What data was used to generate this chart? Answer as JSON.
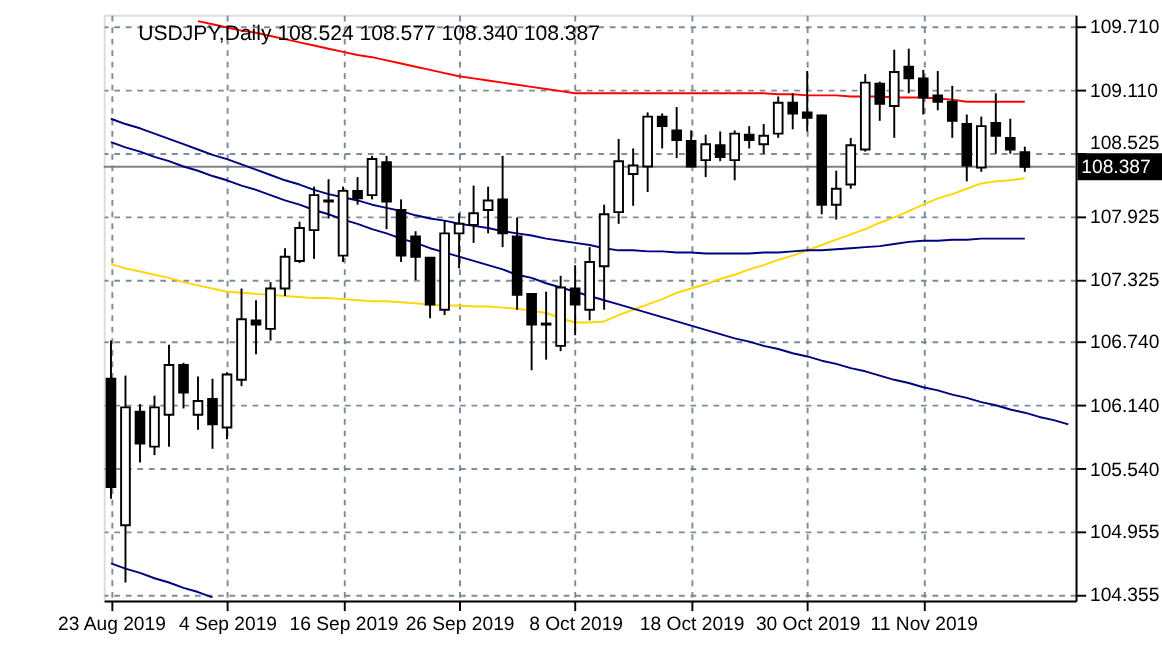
{
  "chart_data": {
    "type": "candlestick",
    "title": "USDJPY,Daily  108.524 108.577 108.340 108.387",
    "categories": [
      "23 Aug 2019",
      null,
      null,
      null,
      null,
      null,
      null,
      null,
      "4 Sep 2019",
      null,
      null,
      null,
      null,
      null,
      null,
      null,
      "16 Sep 2019",
      null,
      null,
      null,
      null,
      null,
      null,
      null,
      "26 Sep 2019",
      null,
      null,
      null,
      null,
      null,
      null,
      null,
      "8 Oct 2019",
      null,
      null,
      null,
      null,
      null,
      null,
      null,
      "18 Oct 2019",
      null,
      null,
      null,
      null,
      null,
      null,
      null,
      "30 Oct 2019",
      null,
      null,
      null,
      null,
      null,
      null,
      null,
      "11 Nov 2019",
      null,
      null,
      null,
      null,
      null,
      null,
      null,
      null,
      null,
      null
    ],
    "ohlc": [
      [
        106.39,
        106.75,
        105.26,
        105.37
      ],
      [
        105.01,
        106.42,
        104.47,
        106.12
      ],
      [
        106.08,
        106.15,
        105.6,
        105.78
      ],
      [
        105.75,
        106.23,
        105.67,
        106.12
      ],
      [
        106.05,
        106.71,
        105.75,
        106.52
      ],
      [
        106.52,
        106.54,
        106.11,
        106.26
      ],
      [
        106.05,
        106.41,
        105.91,
        106.18
      ],
      [
        106.2,
        106.39,
        105.73,
        105.96
      ],
      [
        105.93,
        106.45,
        105.82,
        106.43
      ],
      [
        106.38,
        107.24,
        106.32,
        106.95
      ],
      [
        106.94,
        107.13,
        106.62,
        106.9
      ],
      [
        106.86,
        107.3,
        106.75,
        107.24
      ],
      [
        107.24,
        107.62,
        107.17,
        107.54
      ],
      [
        107.5,
        107.87,
        107.48,
        107.81
      ],
      [
        107.79,
        108.2,
        107.52,
        108.12
      ],
      [
        108.06,
        108.27,
        107.9,
        108.07
      ],
      [
        107.55,
        108.2,
        107.49,
        108.16
      ],
      [
        108.16,
        108.29,
        108.03,
        108.09
      ],
      [
        108.12,
        108.49,
        108.08,
        108.46
      ],
      [
        108.43,
        108.49,
        107.8,
        108.06
      ],
      [
        107.98,
        108.08,
        107.49,
        107.55
      ],
      [
        107.73,
        107.78,
        107.32,
        107.54
      ],
      [
        107.53,
        107.53,
        106.96,
        107.09
      ],
      [
        107.04,
        107.88,
        106.99,
        107.76
      ],
      [
        107.76,
        107.95,
        107.43,
        107.85
      ],
      [
        107.84,
        108.21,
        107.67,
        107.95
      ],
      [
        107.98,
        108.2,
        107.76,
        108.07
      ],
      [
        108.08,
        108.49,
        107.63,
        107.76
      ],
      [
        107.73,
        107.91,
        107.04,
        107.18
      ],
      [
        107.19,
        107.19,
        106.47,
        106.9
      ],
      [
        106.9,
        107.21,
        106.57,
        106.91
      ],
      [
        106.7,
        107.36,
        106.65,
        107.25
      ],
      [
        107.24,
        107.46,
        106.8,
        107.09
      ],
      [
        107.04,
        107.63,
        106.94,
        107.49
      ],
      [
        107.45,
        108.03,
        107.04,
        107.94
      ],
      [
        107.96,
        108.65,
        107.85,
        108.44
      ],
      [
        108.32,
        108.56,
        108.02,
        108.4
      ],
      [
        108.39,
        108.9,
        108.15,
        108.86
      ],
      [
        108.86,
        108.89,
        108.56,
        108.77
      ],
      [
        108.73,
        108.95,
        108.47,
        108.64
      ],
      [
        108.63,
        108.73,
        108.38,
        108.39
      ],
      [
        108.45,
        108.69,
        108.29,
        108.6
      ],
      [
        108.59,
        108.72,
        108.44,
        108.48
      ],
      [
        108.45,
        108.73,
        108.26,
        108.7
      ],
      [
        108.69,
        108.77,
        108.56,
        108.64
      ],
      [
        108.6,
        108.79,
        108.51,
        108.68
      ],
      [
        108.7,
        109.05,
        108.66,
        108.99
      ],
      [
        108.99,
        109.08,
        108.74,
        108.89
      ],
      [
        108.9,
        109.29,
        108.72,
        108.85
      ],
      [
        108.87,
        108.88,
        107.94,
        108.03
      ],
      [
        108.03,
        108.35,
        107.89,
        108.18
      ],
      [
        108.22,
        108.66,
        108.18,
        108.59
      ],
      [
        108.55,
        109.26,
        108.53,
        109.18
      ],
      [
        109.17,
        109.19,
        108.82,
        108.98
      ],
      [
        108.96,
        109.49,
        108.66,
        109.28
      ],
      [
        109.33,
        109.5,
        109.08,
        109.22
      ],
      [
        109.22,
        109.3,
        108.88,
        109.04
      ],
      [
        109.06,
        109.29,
        108.92,
        109.0
      ],
      [
        109.0,
        109.15,
        108.66,
        108.82
      ],
      [
        108.79,
        108.88,
        108.25,
        108.4
      ],
      [
        108.38,
        108.86,
        108.34,
        108.77
      ],
      [
        108.8,
        109.08,
        108.51,
        108.68
      ],
      [
        108.66,
        108.84,
        108.51,
        108.55
      ],
      [
        108.524,
        108.577,
        108.34,
        108.387
      ],
      null,
      null,
      null
    ],
    "series": [
      {
        "type": "line",
        "color": "#ff0000",
        "values": [
          null,
          null,
          null,
          null,
          null,
          null,
          109.76,
          109.73,
          109.7,
          109.67,
          109.65,
          109.62,
          109.59,
          109.56,
          109.53,
          109.5,
          109.47,
          109.44,
          109.42,
          109.39,
          109.36,
          109.33,
          109.3,
          109.27,
          109.24,
          109.22,
          109.2,
          109.18,
          109.16,
          109.14,
          109.12,
          109.1,
          109.08,
          109.08,
          109.08,
          109.08,
          109.08,
          109.08,
          109.08,
          109.08,
          109.08,
          109.08,
          109.08,
          109.08,
          109.08,
          109.08,
          109.07,
          109.07,
          109.06,
          109.06,
          109.06,
          109.05,
          109.05,
          109.05,
          109.04,
          109.04,
          109.04,
          109.03,
          109.02,
          109.0,
          109.0,
          109.0,
          109.0,
          109.0,
          null,
          null,
          null
        ]
      },
      {
        "type": "line",
        "color": "#ffd700",
        "values": [
          107.47,
          107.43,
          107.4,
          107.37,
          107.34,
          107.3,
          107.27,
          107.24,
          107.21,
          107.2,
          107.19,
          107.18,
          107.17,
          107.16,
          107.15,
          107.15,
          107.14,
          107.13,
          107.12,
          107.12,
          107.11,
          107.1,
          107.09,
          107.08,
          107.08,
          107.07,
          107.07,
          107.06,
          107.05,
          107.03,
          107.01,
          106.96,
          106.92,
          106.92,
          106.93,
          106.99,
          107.04,
          107.09,
          107.14,
          107.2,
          107.24,
          107.28,
          107.33,
          107.37,
          107.42,
          107.46,
          107.51,
          107.55,
          107.6,
          107.65,
          107.7,
          107.75,
          107.8,
          107.86,
          107.91,
          107.97,
          108.03,
          108.09,
          108.13,
          108.18,
          108.23,
          108.25,
          108.26,
          108.28,
          null,
          null,
          null
        ]
      },
      {
        "type": "line",
        "color": "#000080",
        "values": [
          108.84,
          108.79,
          108.75,
          108.7,
          108.65,
          108.6,
          108.55,
          108.5,
          108.46,
          108.41,
          108.36,
          108.31,
          108.26,
          108.22,
          108.17,
          108.13,
          108.1,
          108.07,
          108.03,
          108.0,
          107.97,
          107.93,
          107.9,
          107.88,
          107.85,
          107.83,
          107.81,
          107.78,
          107.76,
          107.74,
          107.71,
          107.69,
          107.67,
          107.65,
          107.62,
          107.6,
          107.6,
          107.59,
          107.59,
          107.58,
          107.58,
          107.57,
          107.57,
          107.57,
          107.57,
          107.58,
          107.58,
          107.59,
          107.6,
          107.6,
          107.61,
          107.62,
          107.63,
          107.64,
          107.66,
          107.68,
          107.69,
          107.69,
          107.7,
          107.7,
          107.71,
          107.71,
          107.71,
          107.71,
          null,
          null,
          null
        ]
      },
      {
        "type": "line",
        "color": "#000080",
        "values": [
          108.62,
          108.57,
          108.53,
          108.48,
          108.44,
          108.39,
          108.35,
          108.3,
          108.26,
          108.21,
          108.17,
          108.12,
          108.07,
          108.03,
          107.98,
          107.94,
          107.89,
          107.85,
          107.8,
          107.76,
          107.71,
          107.67,
          107.62,
          107.58,
          107.54,
          107.5,
          107.46,
          107.42,
          107.37,
          107.34,
          107.29,
          107.25,
          107.21,
          107.17,
          107.13,
          107.09,
          107.05,
          107.01,
          106.97,
          106.93,
          106.89,
          106.85,
          106.81,
          106.77,
          106.74,
          106.7,
          106.67,
          106.63,
          106.6,
          106.56,
          106.53,
          106.49,
          106.46,
          106.42,
          106.38,
          106.35,
          106.31,
          106.28,
          106.24,
          106.21,
          106.17,
          106.14,
          106.1,
          106.07,
          106.03,
          106.0,
          105.96
        ]
      },
      {
        "type": "line",
        "color": "#000080",
        "values": [
          104.65,
          104.6,
          104.56,
          104.51,
          104.47,
          104.42,
          104.38,
          104.33,
          null,
          null,
          null,
          null,
          null,
          null,
          null,
          null,
          null,
          null,
          null,
          null,
          null,
          null,
          null,
          null,
          null,
          null,
          null,
          null,
          null,
          null,
          null,
          null,
          null,
          null,
          null,
          null,
          null,
          null,
          null,
          null,
          null,
          null,
          null,
          null,
          null,
          null,
          null,
          null,
          null,
          null,
          null,
          null,
          null,
          null,
          null,
          null,
          null,
          null,
          null,
          null,
          null,
          null,
          null,
          null,
          null,
          null,
          null
        ]
      }
    ],
    "ylim": [
      104.3,
      109.82
    ],
    "yticks": [
      104.355,
      104.955,
      {
        "value": 105.54,
        "label": "105.540"
      },
      {
        "value": 106.14,
        "label": "106.140"
      },
      {
        "value": 106.74,
        "label": "106.740"
      },
      107.325,
      107.925,
      108.525,
      {
        "value": 109.11,
        "label": "109.110"
      },
      {
        "value": 109.71,
        "label": "109.710"
      }
    ],
    "ref_lines": [
      {
        "axis": "y",
        "value": 108.387,
        "label": "108.387",
        "color": "#808080"
      }
    ],
    "grid": true,
    "legend": false,
    "marker": "none",
    "line_style": "solid"
  }
}
